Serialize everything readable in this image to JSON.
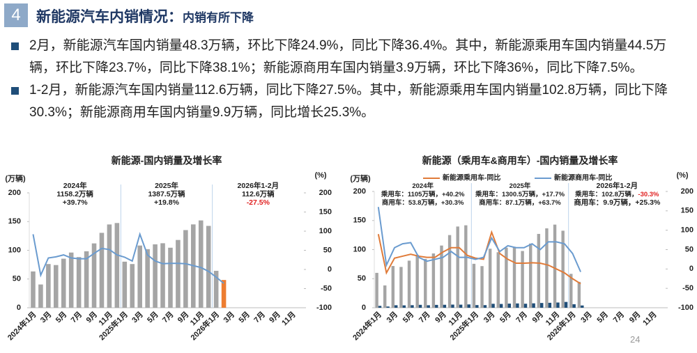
{
  "header": {
    "number": "4",
    "title": "新能源汽车内销情况：",
    "subtitle": "内销有所下降"
  },
  "bullets": [
    "2月，新能源汽车国内销量48.3万辆，环比下降24.9%，同比下降36.4%。其中，新能源乘用车国内销量44.5万辆，环比下降23.7%，同比下降38.1%；新能源商用车国内销量3.9万辆，环比下降36%，同比下降7.5%。",
    "1-2月，新能源汽车国内销量112.6万辆，同比下降27.5%。其中，新能源乘用车国内销量102.8万辆，同比下降30.3%；新能源商用车国内销量9.9万辆，同比增长25.3%。"
  ],
  "page_number": "24",
  "chart_data": [
    {
      "type": "combo",
      "title": "新能源-国内销量及增长率",
      "y_label": "(万辆)",
      "y2_label": "(%)",
      "categories": [
        "2024年1月",
        null,
        "3月",
        null,
        "5月",
        null,
        "7月",
        null,
        "9月",
        null,
        "11月",
        null,
        "2025年1月",
        null,
        "3月",
        null,
        "5月",
        null,
        "7月",
        null,
        "9月",
        null,
        "11月",
        null,
        "2026年1月",
        null,
        "3月",
        null,
        "5月",
        null,
        "7月",
        null,
        "9月",
        null,
        "11月",
        null
      ],
      "series": [
        {
          "type": "bar",
          "color": "#a5a5a5",
          "highlight_color": "#ed7d31",
          "values": [
            63.2,
            40.5,
            76.1,
            74.3,
            85.4,
            96.1,
            88.2,
            98.3,
            112.0,
            130.4,
            145.0,
            147.5,
            80.2,
            76.1,
            108.3,
            102.0,
            110.4,
            112.3,
            104.5,
            118.0,
            135.2,
            145.1,
            152.0,
            142.5,
            64.3,
            48.3,
            null,
            null,
            null,
            null,
            null,
            null,
            null,
            null,
            null,
            null
          ]
        },
        {
          "type": "line",
          "axis": "y2",
          "color": "#6a9bcf",
          "values": [
            92,
            -15,
            30,
            33,
            38,
            30,
            28,
            28,
            42,
            55,
            52,
            38,
            32,
            22,
            92,
            38,
            22,
            15,
            16,
            16,
            15,
            10,
            5,
            -5,
            -20,
            -36.4,
            null,
            null,
            null,
            null,
            null,
            null,
            null,
            null,
            null,
            null
          ]
        }
      ],
      "ylim": [
        0,
        200
      ],
      "yticks": [
        0,
        50,
        100,
        150,
        200
      ],
      "y2lim": [
        -100,
        200
      ],
      "y2ticks": [
        -100,
        -50,
        0,
        50,
        100,
        150,
        200
      ],
      "annotations": [
        [
          [
            {
              "text": "2024年"
            }
          ],
          [
            {
              "text": "1158.2万辆"
            }
          ],
          [
            {
              "text": "+39.7%"
            }
          ]
        ],
        [
          [
            {
              "text": "2025年"
            }
          ],
          [
            {
              "text": "1387.5万辆"
            }
          ],
          [
            {
              "text": "+19.8%"
            }
          ]
        ],
        [
          [
            {
              "text": "2026年1-2月"
            }
          ],
          [
            {
              "text": "112.6万辆"
            }
          ],
          [
            {
              "text": "-27.5%",
              "color": "#e02020"
            }
          ]
        ]
      ]
    },
    {
      "type": "combo",
      "title": "新能源（乘用车&商用车）-国内销量及增长率",
      "y_label": "(万辆)",
      "y2_label": "(%)",
      "categories": [
        "2024年1月",
        null,
        "3月",
        null,
        "5月",
        null,
        "7月",
        null,
        "9月",
        null,
        "11月",
        null,
        "2025年1月",
        null,
        "3月",
        null,
        "5月",
        null,
        "7月",
        null,
        "9月",
        null,
        "11月",
        null,
        "2026年1月",
        null,
        "3月",
        null,
        "5月",
        null,
        "7月",
        null,
        "9月",
        null,
        "11月",
        null
      ],
      "series": [
        {
          "type": "bar",
          "color": "#a5a5a5",
          "values": [
            60.0,
            38.4,
            71.8,
            70.2,
            81.0,
            91.0,
            84.0,
            93.4,
            107.0,
            125.0,
            139.7,
            141.8,
            75.6,
            71.6,
            101.5,
            95.5,
            103.3,
            104.9,
            97.6,
            110.4,
            127.0,
            136.6,
            143.0,
            132.5,
            58.3,
            44.5,
            null,
            null,
            null,
            null,
            null,
            null,
            null,
            null,
            null,
            null
          ]
        },
        {
          "type": "bar",
          "color": "#1f4e79",
          "values": [
            3.2,
            2.1,
            4.3,
            4.1,
            4.4,
            5.0,
            4.3,
            4.9,
            5.1,
            5.4,
            5.3,
            5.7,
            4.6,
            4.5,
            6.8,
            6.5,
            7.1,
            7.4,
            6.9,
            7.6,
            8.2,
            8.5,
            9.0,
            10.0,
            6.0,
            3.9,
            null,
            null,
            null,
            null,
            null,
            null,
            null,
            null,
            null,
            null
          ]
        },
        {
          "type": "line",
          "axis": "y2",
          "name": "新能源乘用车-同比",
          "color": "#e07b39",
          "values": [
            90,
            -10,
            28,
            33,
            38,
            33,
            30,
            30,
            44,
            55,
            55,
            35,
            28,
            25,
            95,
            40,
            25,
            15,
            15,
            16,
            15,
            10,
            0,
            -10,
            -25,
            -38.1,
            null,
            null,
            null,
            null,
            null,
            null,
            null,
            null,
            null,
            null
          ]
        },
        {
          "type": "line",
          "axis": "y2",
          "name": "新能源商用车-同比",
          "color": "#6a9bcf",
          "values": [
            160,
            10,
            55,
            65,
            68,
            30,
            20,
            25,
            30,
            45,
            30,
            30,
            25,
            30,
            80,
            45,
            60,
            55,
            55,
            65,
            50,
            70,
            70,
            65,
            40,
            -7.5,
            null,
            null,
            null,
            null,
            null,
            null,
            null,
            null,
            null,
            null
          ]
        }
      ],
      "ylim": [
        0,
        200
      ],
      "yticks": [
        0,
        50,
        100,
        150,
        200
      ],
      "y2lim": [
        -100,
        200
      ],
      "y2ticks": [
        -100,
        -50,
        0,
        50,
        100,
        150,
        200
      ],
      "annotations": [
        [
          [
            {
              "text": "2024年"
            }
          ],
          [
            {
              "text": "乘用车：1105万辆，+40.2%"
            }
          ],
          [
            {
              "text": "商用车：53.8万辆，+30.3%"
            }
          ]
        ],
        [
          [
            {
              "text": "2025年"
            }
          ],
          [
            {
              "text": "乘用车：1300.5万辆，+17.7%"
            }
          ],
          [
            {
              "text": "商用车：87.1万辆，+63.7%"
            }
          ]
        ],
        [
          [
            {
              "text": "2026年1-2月"
            }
          ],
          [
            {
              "text": "乘用车：102.8万辆，"
            },
            {
              "text": "-30.3%",
              "color": "#e02020"
            }
          ],
          [
            {
              "text": "商用车：9.9万辆，+25.3%"
            }
          ]
        ]
      ]
    }
  ]
}
